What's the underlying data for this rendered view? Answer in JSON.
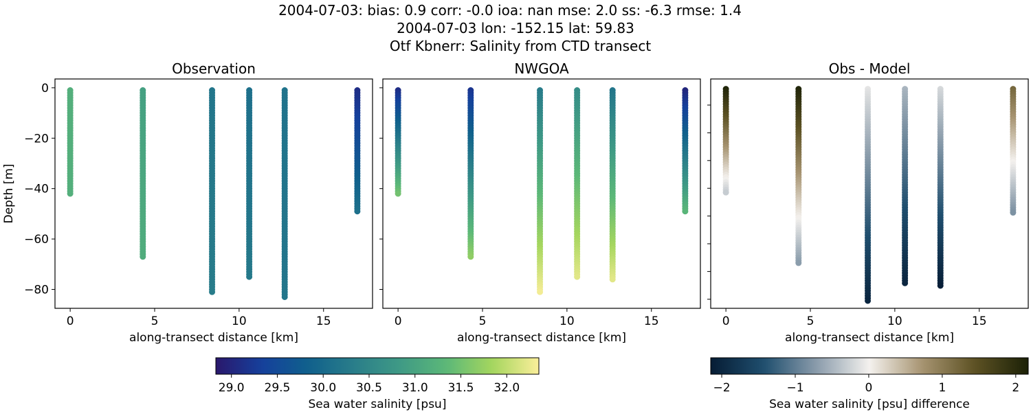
{
  "title_lines": [
    "2004-07-03: bias: 0.9  corr: -0.0  ioa: nan  mse: 2.0  ss: -6.3  rmse: 1.4",
    "2004-07-03 lon: -152.15 lat: 59.83",
    "Otf Kbnerr: Salinity from CTD transect"
  ],
  "chart_data": [
    {
      "type": "scatter",
      "title": "Observation",
      "xlabel": "along-transect distance [km]",
      "ylabel": "Depth [m]",
      "xlim": [
        -0.9,
        17.9
      ],
      "ylim": [
        -87.5,
        3.5
      ],
      "xticks": [
        "0",
        "5",
        "10",
        "15"
      ],
      "yticks": [
        "0",
        "−20",
        "−40",
        "−60",
        "−80"
      ],
      "colormap": "haline",
      "stations": [
        {
          "x": 0.0,
          "bottom": -42,
          "top_value": 31.2,
          "bottom_value": 31.2
        },
        {
          "x": 4.3,
          "bottom": -67,
          "top_value": 30.95,
          "bottom_value": 31.15
        },
        {
          "x": 8.4,
          "bottom": -81,
          "top_value": 30.2,
          "bottom_value": 30.3
        },
        {
          "x": 10.6,
          "bottom": -75,
          "top_value": 30.1,
          "bottom_value": 30.25
        },
        {
          "x": 12.7,
          "bottom": -83,
          "top_value": 30.15,
          "bottom_value": 30.2
        },
        {
          "x": 17.0,
          "bottom": -49,
          "top_value": 29.1,
          "bottom_value": 30.1
        }
      ]
    },
    {
      "type": "scatter",
      "title": "NWGOA",
      "xlabel": "along-transect distance [km]",
      "xlim": [
        -0.9,
        17.9
      ],
      "ylim": [
        -87.5,
        3.5
      ],
      "xticks": [
        "0",
        "5",
        "10",
        "15"
      ],
      "colormap": "haline",
      "stations": [
        {
          "x": 0.0,
          "bottom": -42,
          "top_value": 29.1,
          "bottom_value": 31.5
        },
        {
          "x": 4.3,
          "bottom": -67,
          "top_value": 29.2,
          "bottom_value": 31.7
        },
        {
          "x": 8.4,
          "bottom": -81,
          "top_value": 30.3,
          "bottom_value": 32.3
        },
        {
          "x": 10.6,
          "bottom": -75,
          "top_value": 30.6,
          "bottom_value": 32.2
        },
        {
          "x": 12.7,
          "bottom": -76,
          "top_value": 30.2,
          "bottom_value": 32.2
        },
        {
          "x": 17.0,
          "bottom": -49,
          "top_value": 29.0,
          "bottom_value": 31.3
        }
      ]
    },
    {
      "type": "scatter",
      "title": "Obs - Model",
      "xlabel": "along-transect distance [km]",
      "xlim": [
        -0.9,
        17.9
      ],
      "ylim": [
        -88,
        3
      ],
      "xticks": [
        "0",
        "5",
        "10",
        "15"
      ],
      "colormap": "diff",
      "stations": [
        {
          "x": 0.0,
          "bottom": -42,
          "top_value": 2.1,
          "bottom_value": -0.3
        },
        {
          "x": 4.3,
          "bottom": -70,
          "top_value": 2.1,
          "bottom_value": -0.7
        },
        {
          "x": 8.4,
          "bottom": -85,
          "top_value": -0.1,
          "bottom_value": -2.0
        },
        {
          "x": 10.6,
          "bottom": -78,
          "top_value": -0.5,
          "bottom_value": -2.0
        },
        {
          "x": 12.7,
          "bottom": -79,
          "top_value": -0.2,
          "bottom_value": -2.1
        },
        {
          "x": 17.0,
          "bottom": -50,
          "top_value": 1.2,
          "bottom_value": -0.8
        }
      ]
    }
  ],
  "colorbars": [
    {
      "label": "Sea water salinity [psu]",
      "range": [
        28.83,
        32.35
      ],
      "ticks": [
        "29.0",
        "29.5",
        "30.0",
        "30.5",
        "31.0",
        "31.5",
        "32.0"
      ],
      "tick_values": [
        29.0,
        29.5,
        30.0,
        30.5,
        31.0,
        31.5,
        32.0
      ],
      "colormap": "haline"
    },
    {
      "label": "Sea water salinity [psu] difference",
      "range": [
        -2.15,
        2.17
      ],
      "ticks": [
        "−2",
        "−1",
        "0",
        "1",
        "2"
      ],
      "tick_values": [
        -2,
        -1,
        0,
        1,
        2
      ],
      "colormap": "diff"
    }
  ],
  "colormaps": {
    "haline": [
      "#2a186c",
      "#15409c",
      "#10608c",
      "#2a7e8a",
      "#3f9a85",
      "#5cb878",
      "#a5d65e",
      "#fbee9a"
    ],
    "diff": [
      "#061c34",
      "#1f4e6e",
      "#8a9cab",
      "#f4f1ee",
      "#a69370",
      "#5c5123",
      "#1b2107"
    ]
  }
}
